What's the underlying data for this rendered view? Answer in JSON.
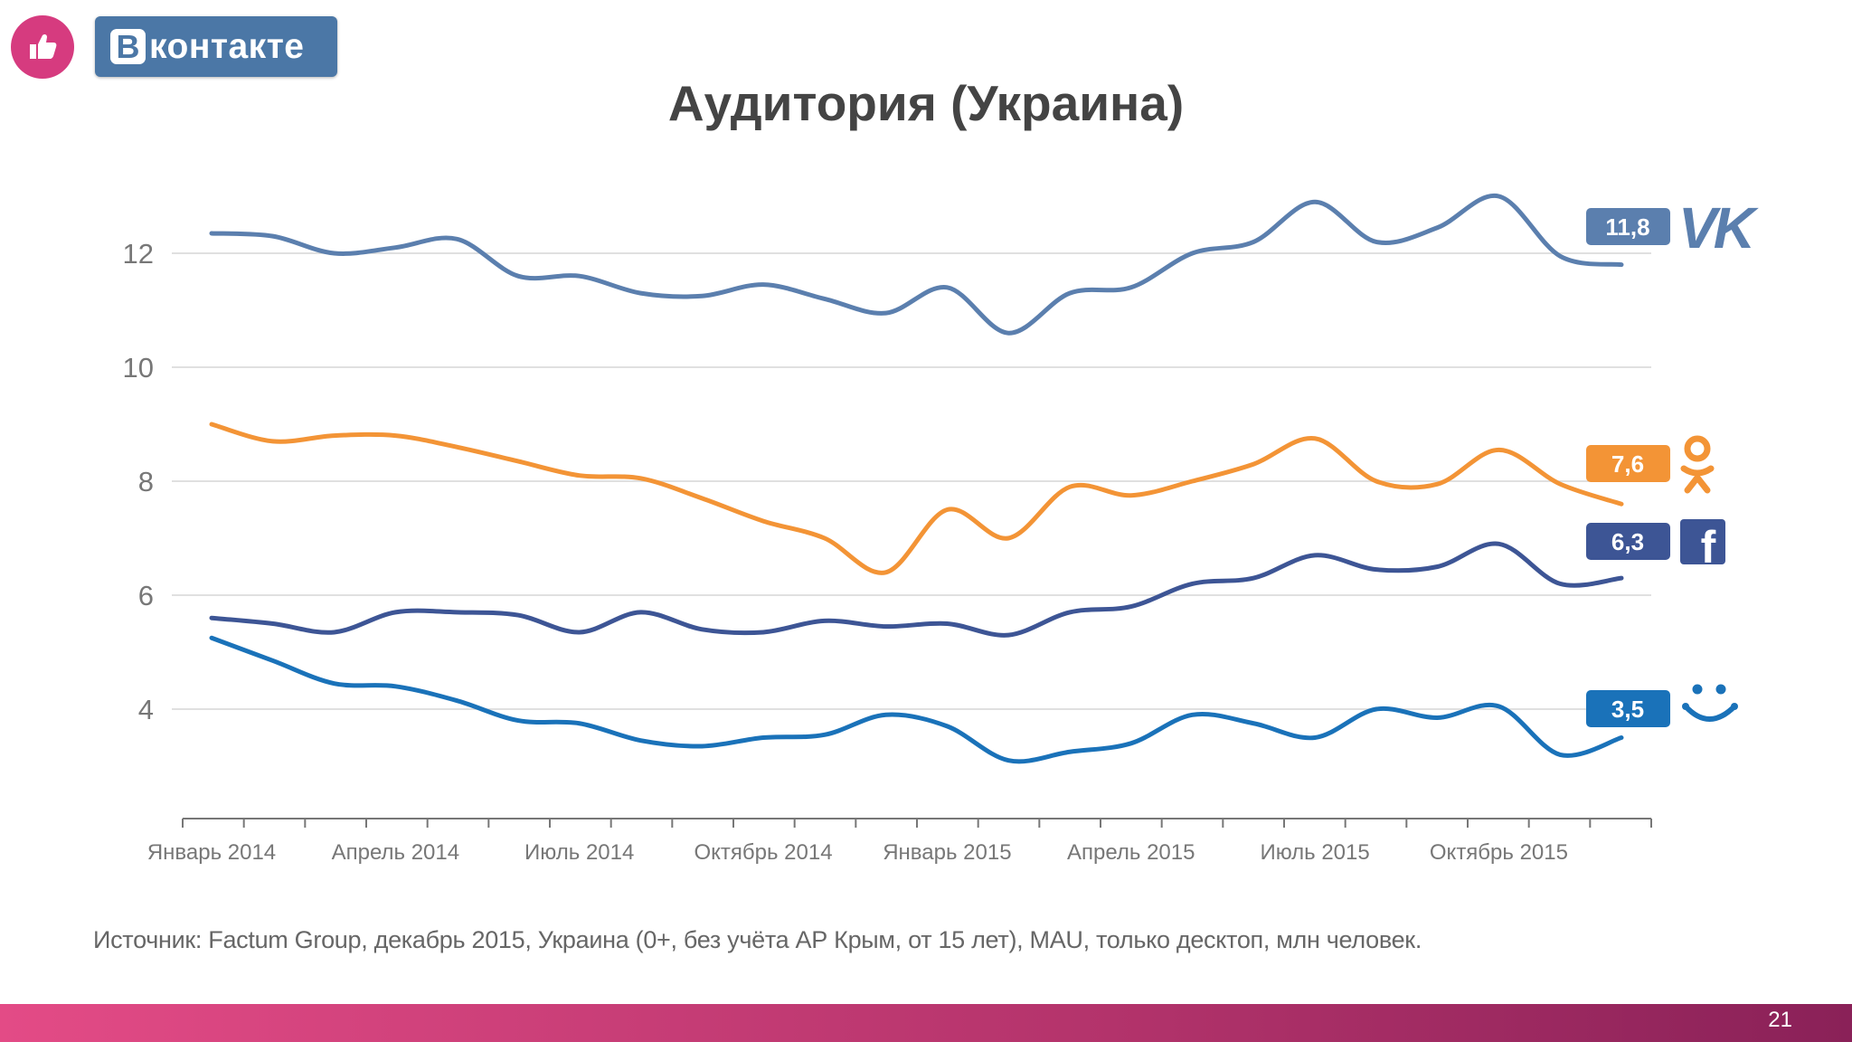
{
  "header": {
    "brand_letter": "B",
    "brand_name": "контакте",
    "title": "Аудитория (Украина)"
  },
  "source_note": "Источник: Factum Group, декабрь 2015, Украина (0+, без учёта АР Крым, от 15 лет), MAU, только десктоп, млн человек.",
  "page_number": "21",
  "colors": {
    "accent": "#d63b7f",
    "vk": "#5b7fae",
    "ok": "#f39436",
    "fb": "#3d5595",
    "mm": "#1a72b9"
  },
  "chart_data": {
    "type": "line",
    "title": "Аудитория (Украина)",
    "xlabel": "",
    "ylabel": "",
    "ylim": [
      2,
      13.5
    ],
    "yticks": [
      "4",
      "6",
      "8",
      "10",
      "12"
    ],
    "grid": true,
    "categories": [
      "Январь 2014",
      "Апрель 2014",
      "Июль 2014",
      "Октябрь 2014",
      "Январь 2015",
      "Апрель 2015",
      "Июль 2015",
      "Октябрь 2015"
    ],
    "x": [
      1,
      2,
      3,
      4,
      5,
      6,
      7,
      8,
      9,
      10,
      11,
      12,
      13,
      14,
      15,
      16,
      17,
      18,
      19,
      20,
      21,
      22,
      23,
      24
    ],
    "series": [
      {
        "name": "ВКонтакте",
        "icon": "vk-logo-icon",
        "end_label": "11,8",
        "color": "#5b7fae",
        "values": [
          12.35,
          12.3,
          12.0,
          12.1,
          12.25,
          11.6,
          11.6,
          11.3,
          11.25,
          11.45,
          11.2,
          10.95,
          11.4,
          10.6,
          11.3,
          11.4,
          12.0,
          12.2,
          12.9,
          12.2,
          12.45,
          13.0,
          11.95,
          11.8
        ]
      },
      {
        "name": "Одноклассники",
        "icon": "ok-logo-icon",
        "end_label": "7,6",
        "color": "#f39436",
        "values": [
          9.0,
          8.7,
          8.8,
          8.8,
          8.6,
          8.35,
          8.1,
          8.05,
          7.7,
          7.3,
          7.0,
          6.4,
          7.5,
          7.0,
          7.9,
          7.75,
          8.0,
          8.3,
          8.75,
          8.0,
          7.95,
          8.55,
          7.95,
          7.6
        ]
      },
      {
        "name": "Facebook",
        "icon": "facebook-logo-icon",
        "end_label": "6,3",
        "color": "#3d5595",
        "values": [
          5.6,
          5.5,
          5.35,
          5.7,
          5.7,
          5.65,
          5.35,
          5.7,
          5.4,
          5.35,
          5.55,
          5.45,
          5.5,
          5.3,
          5.7,
          5.8,
          6.2,
          6.3,
          6.7,
          6.45,
          6.5,
          6.9,
          6.2,
          6.3
        ]
      },
      {
        "name": "Мой Мир",
        "icon": "moimir-logo-icon",
        "end_label": "3,5",
        "color": "#1a72b9",
        "values": [
          5.25,
          4.85,
          4.45,
          4.4,
          4.15,
          3.8,
          3.75,
          3.45,
          3.35,
          3.5,
          3.55,
          3.9,
          3.7,
          3.1,
          3.25,
          3.4,
          3.9,
          3.75,
          3.5,
          4.0,
          3.85,
          4.05,
          3.2,
          3.5
        ]
      }
    ]
  }
}
